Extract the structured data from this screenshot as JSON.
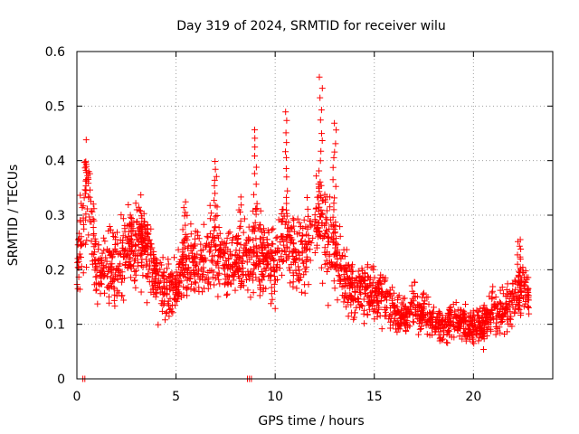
{
  "chart_data": {
    "type": "scatter",
    "title": "Day 319 of 2024, SRMTID for receiver wilu",
    "xlabel": "GPS time / hours",
    "ylabel": "SRMTID / TECUs",
    "xlim": [
      0,
      24
    ],
    "ylim": [
      0,
      0.6
    ],
    "xticks": [
      0,
      5,
      10,
      15,
      20
    ],
    "xtick_labels": [
      "0",
      "5",
      "10",
      "15",
      "20"
    ],
    "yticks": [
      0,
      0.1,
      0.2,
      0.3,
      0.4,
      0.5,
      0.6
    ],
    "ytick_labels": [
      "0",
      "0.1",
      "0.2",
      "0.3",
      "0.4",
      "0.5",
      "0.6"
    ],
    "grid": true,
    "marker": "+",
    "color": "#ff0000",
    "series": [
      {
        "name": "SRMTID",
        "seed": 319,
        "trend": [
          [
            0.0,
            0.22
          ],
          [
            0.3,
            0.28
          ],
          [
            0.5,
            0.34
          ],
          [
            0.8,
            0.26
          ],
          [
            1.0,
            0.2
          ],
          [
            1.5,
            0.19
          ],
          [
            2.0,
            0.21
          ],
          [
            2.5,
            0.23
          ],
          [
            3.0,
            0.25
          ],
          [
            3.5,
            0.24
          ],
          [
            4.0,
            0.18
          ],
          [
            4.5,
            0.16
          ],
          [
            5.0,
            0.17
          ],
          [
            5.5,
            0.22
          ],
          [
            6.0,
            0.2
          ],
          [
            6.5,
            0.22
          ],
          [
            7.0,
            0.24
          ],
          [
            7.5,
            0.22
          ],
          [
            8.0,
            0.2
          ],
          [
            8.5,
            0.22
          ],
          [
            9.0,
            0.24
          ],
          [
            9.5,
            0.22
          ],
          [
            10.0,
            0.2
          ],
          [
            10.5,
            0.27
          ],
          [
            11.0,
            0.22
          ],
          [
            11.5,
            0.24
          ],
          [
            12.0,
            0.26
          ],
          [
            12.3,
            0.3
          ],
          [
            12.6,
            0.27
          ],
          [
            13.0,
            0.25
          ],
          [
            13.5,
            0.18
          ],
          [
            14.0,
            0.16
          ],
          [
            14.5,
            0.17
          ],
          [
            15.0,
            0.15
          ],
          [
            15.5,
            0.15
          ],
          [
            16.0,
            0.12
          ],
          [
            16.5,
            0.12
          ],
          [
            17.0,
            0.13
          ],
          [
            17.5,
            0.12
          ],
          [
            18.0,
            0.1
          ],
          [
            18.5,
            0.1
          ],
          [
            19.0,
            0.11
          ],
          [
            19.5,
            0.1
          ],
          [
            20.0,
            0.095
          ],
          [
            20.5,
            0.1
          ],
          [
            21.0,
            0.13
          ],
          [
            21.5,
            0.12
          ],
          [
            22.0,
            0.15
          ],
          [
            22.5,
            0.17
          ],
          [
            22.8,
            0.14
          ]
        ],
        "spikes": [
          {
            "x": 0.5,
            "ymax": 0.4
          },
          {
            "x": 2.7,
            "ymax": 0.3
          },
          {
            "x": 3.3,
            "ymax": 0.3
          },
          {
            "x": 3.5,
            "ymax": 0.28
          },
          {
            "x": 5.4,
            "ymax": 0.32
          },
          {
            "x": 7.0,
            "ymax": 0.4
          },
          {
            "x": 8.2,
            "ymax": 0.33
          },
          {
            "x": 9.0,
            "ymax": 0.46
          },
          {
            "x": 10.6,
            "ymax": 0.49
          },
          {
            "x": 12.3,
            "ymax": 0.55
          },
          {
            "x": 13.0,
            "ymax": 0.47
          },
          {
            "x": 22.3,
            "ymax": 0.26
          }
        ],
        "zeros": [
          0.3,
          0.4,
          8.6,
          8.7,
          8.8
        ]
      }
    ]
  }
}
